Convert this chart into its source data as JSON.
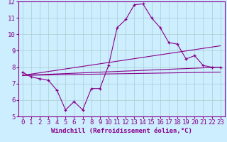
{
  "xlabel": "Windchill (Refroidissement éolien,°C)",
  "background_color": "#cceeff",
  "grid_color": "#aacccc",
  "line_color": "#880088",
  "xlim": [
    -0.5,
    23.5
  ],
  "ylim": [
    5,
    12
  ],
  "xticks": [
    0,
    1,
    2,
    3,
    4,
    5,
    6,
    7,
    8,
    9,
    10,
    11,
    12,
    13,
    14,
    15,
    16,
    17,
    18,
    19,
    20,
    21,
    22,
    23
  ],
  "yticks": [
    5,
    6,
    7,
    8,
    9,
    10,
    11,
    12
  ],
  "line1_x": [
    0,
    1,
    2,
    3,
    4,
    5,
    6,
    7,
    8,
    9,
    10,
    11,
    12,
    13,
    14,
    15,
    16,
    17,
    18,
    19,
    20,
    21,
    22,
    23
  ],
  "line1_y": [
    7.7,
    7.4,
    7.3,
    7.2,
    6.6,
    5.4,
    5.9,
    5.4,
    6.7,
    6.7,
    8.1,
    10.4,
    10.9,
    11.8,
    11.85,
    11.0,
    10.4,
    9.5,
    9.4,
    8.5,
    8.7,
    8.1,
    8.0,
    8.0
  ],
  "line2_x": [
    0,
    23
  ],
  "line2_y": [
    7.5,
    9.3
  ],
  "line3_x": [
    0,
    23
  ],
  "line3_y": [
    7.5,
    8.0
  ],
  "line4_x": [
    0,
    23
  ],
  "line4_y": [
    7.5,
    7.7
  ],
  "font_size": 6.5
}
